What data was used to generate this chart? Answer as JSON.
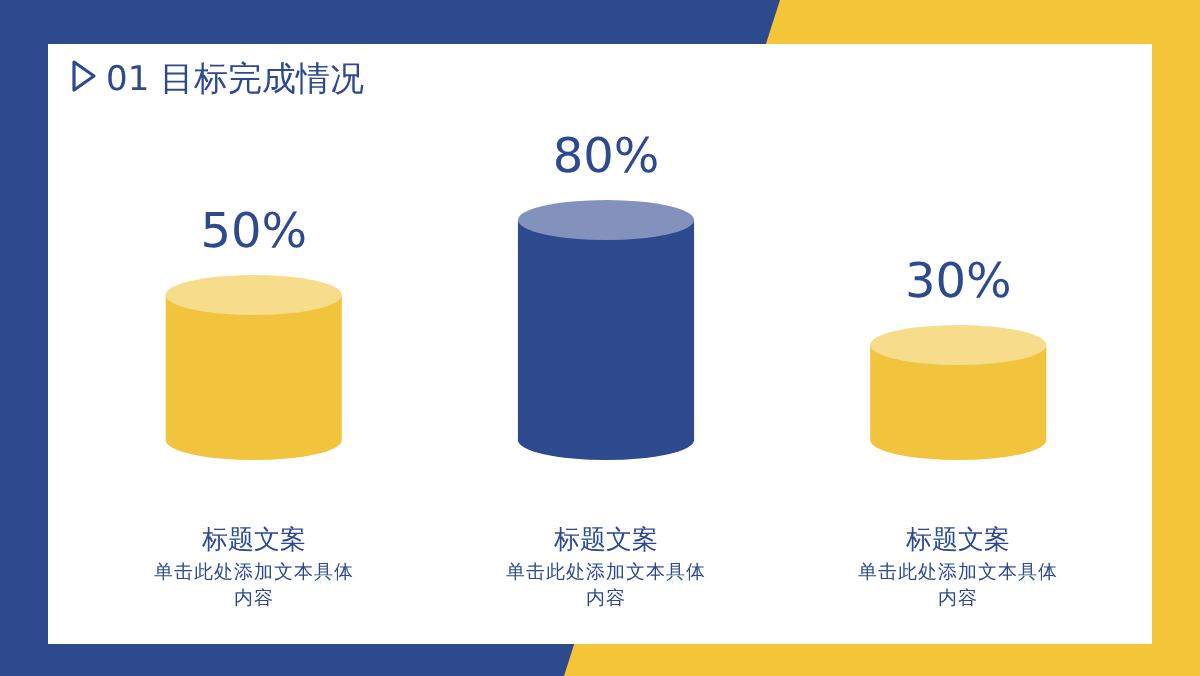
{
  "chart_data": {
    "type": "bar",
    "title": "01 目标完成情况",
    "categories": [
      "标题文案",
      "标题文案",
      "标题文案"
    ],
    "values": [
      50,
      80,
      30
    ],
    "colors": [
      "#f2c43d",
      "#2e4a8f",
      "#f2c43d"
    ],
    "value_labels": [
      "50%",
      "80%",
      "30%"
    ],
    "annotations": [
      "单击此处添加文本具体内容",
      "单击此处添加文本具体内容",
      "单击此处添加文本具体内容"
    ]
  }
}
